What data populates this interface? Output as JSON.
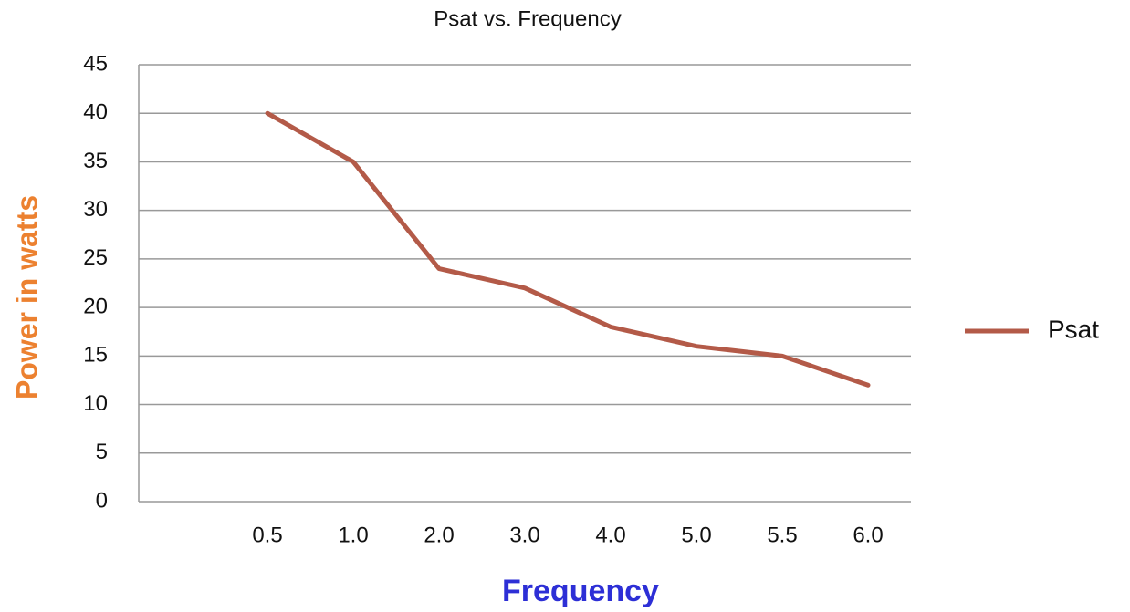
{
  "chart_data": {
    "type": "line",
    "title": "Psat vs. Frequency",
    "x_label": "Frequency",
    "y_label": "Power in watts",
    "categories": [
      null,
      "0.5",
      "1.0",
      "2.0",
      "3.0",
      "4.0",
      "5.0",
      "5.5",
      "6.0"
    ],
    "series": [
      {
        "name": "Psat",
        "color": "#b35a48",
        "values": [
          null,
          40,
          35,
          24,
          22,
          18,
          16,
          15,
          12
        ]
      }
    ],
    "ylim": [
      0,
      45
    ],
    "yticks": [
      0,
      5,
      10,
      15,
      20,
      25,
      30,
      35,
      40,
      45
    ],
    "grid": true,
    "legend": "right"
  }
}
